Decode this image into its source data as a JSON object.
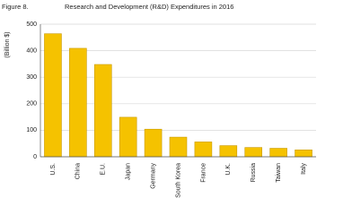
{
  "chart_data": {
    "type": "bar",
    "figure_label": "Figure 8.",
    "title": "Research and Development (R&D) Expenditures in 2016",
    "y_label": "(Billion $)",
    "categories": [
      "U.S.",
      "China",
      "E.U.",
      "Japan",
      "Germany",
      "South Korea",
      "France",
      "U.K.",
      "Russia",
      "Taiwan",
      "Italy"
    ],
    "values": [
      464,
      409,
      348,
      149,
      104,
      74,
      56,
      42,
      35,
      32,
      26
    ],
    "color": "#f5c200",
    "ylim": [
      0,
      500
    ],
    "yticks": [
      0,
      100,
      200,
      300,
      400,
      500
    ],
    "grid": true
  }
}
